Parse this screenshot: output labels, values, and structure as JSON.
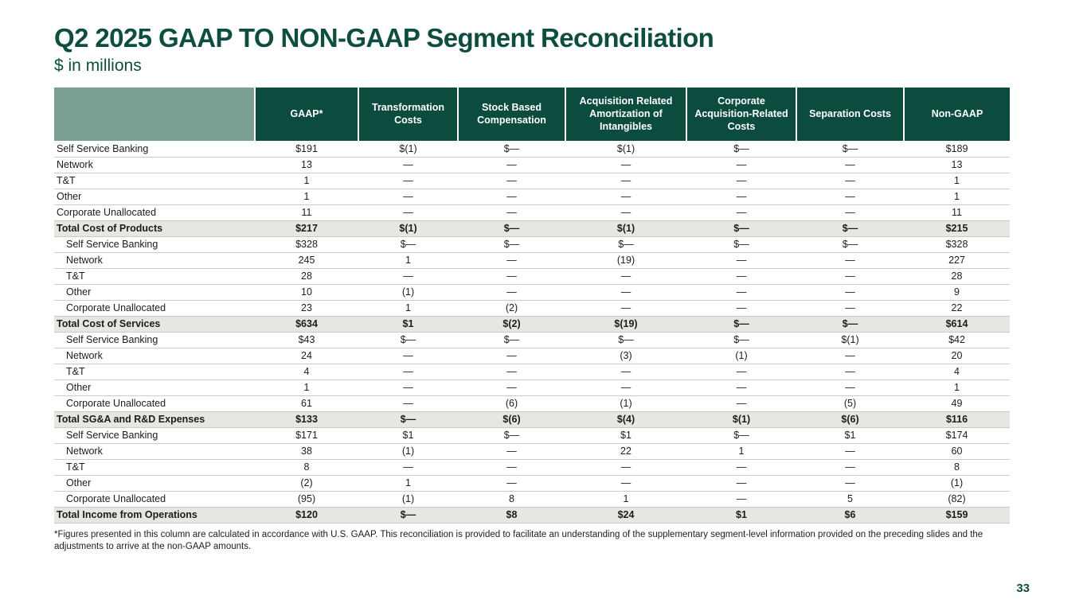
{
  "header": {
    "title": "Q2 2025 GAAP TO NON-GAAP Segment Reconciliation",
    "subtitle": "$ in millions"
  },
  "colors": {
    "header_green": "#0b4c3f",
    "header_sage": "#7aa092",
    "total_row_bg": "#e4e8e0",
    "title_green": "#0d4e40"
  },
  "table": {
    "columns": [
      "",
      "GAAP*",
      "Transformation Costs",
      "Stock Based Compensation",
      "Acquisition Related Amortization of Intangibles",
      "Corporate Acquisition-Related Costs",
      "Separation Costs",
      "Non-GAAP"
    ],
    "rows": [
      {
        "label": "Self Service Banking",
        "type": "data",
        "indent": false,
        "values": [
          "$191",
          "$(1)",
          "$—",
          "$(1)",
          "$—",
          "$—",
          "$189"
        ]
      },
      {
        "label": "Network",
        "type": "data",
        "indent": false,
        "values": [
          "13",
          "—",
          "—",
          "—",
          "—",
          "—",
          "13"
        ]
      },
      {
        "label": "T&T",
        "type": "data",
        "indent": false,
        "values": [
          "1",
          "—",
          "—",
          "—",
          "—",
          "—",
          "1"
        ]
      },
      {
        "label": "Other",
        "type": "data",
        "indent": false,
        "values": [
          "1",
          "—",
          "—",
          "—",
          "—",
          "—",
          "1"
        ]
      },
      {
        "label": "Corporate Unallocated",
        "type": "data",
        "indent": false,
        "values": [
          "11",
          "—",
          "—",
          "—",
          "—",
          "—",
          "11"
        ]
      },
      {
        "label": "Total Cost of Products",
        "type": "total",
        "indent": false,
        "values": [
          "$217",
          "$(1)",
          "$—",
          "$(1)",
          "$—",
          "$—",
          "$215"
        ]
      },
      {
        "label": "Self Service Banking",
        "type": "data",
        "indent": true,
        "values": [
          "$328",
          "$—",
          "$—",
          "$—",
          "$—",
          "$—",
          "$328"
        ]
      },
      {
        "label": "Network",
        "type": "data",
        "indent": true,
        "values": [
          "245",
          "1",
          "—",
          "(19)",
          "—",
          "—",
          "227"
        ]
      },
      {
        "label": "T&T",
        "type": "data",
        "indent": true,
        "values": [
          "28",
          "—",
          "—",
          "—",
          "—",
          "—",
          "28"
        ]
      },
      {
        "label": "Other",
        "type": "data",
        "indent": true,
        "values": [
          "10",
          "(1)",
          "—",
          "—",
          "—",
          "—",
          "9"
        ]
      },
      {
        "label": "Corporate Unallocated",
        "type": "data",
        "indent": true,
        "values": [
          "23",
          "1",
          "(2)",
          "—",
          "—",
          "—",
          "22"
        ]
      },
      {
        "label": "Total Cost of Services",
        "type": "total",
        "indent": false,
        "values": [
          "$634",
          "$1",
          "$(2)",
          "$(19)",
          "$—",
          "$—",
          "$614"
        ]
      },
      {
        "label": "Self Service Banking",
        "type": "data",
        "indent": true,
        "values": [
          "$43",
          "$—",
          "$—",
          "$—",
          "$—",
          "$(1)",
          "$42"
        ]
      },
      {
        "label": "Network",
        "type": "data",
        "indent": true,
        "values": [
          "24",
          "—",
          "—",
          "(3)",
          "(1)",
          "—",
          "20"
        ]
      },
      {
        "label": "T&T",
        "type": "data",
        "indent": true,
        "values": [
          "4",
          "—",
          "—",
          "—",
          "—",
          "—",
          "4"
        ]
      },
      {
        "label": "Other",
        "type": "data",
        "indent": true,
        "values": [
          "1",
          "—",
          "—",
          "—",
          "—",
          "—",
          "1"
        ]
      },
      {
        "label": "Corporate Unallocated",
        "type": "data",
        "indent": true,
        "values": [
          "61",
          "—",
          "(6)",
          "(1)",
          "—",
          "(5)",
          "49"
        ]
      },
      {
        "label": "Total SG&A and R&D Expenses",
        "type": "total",
        "indent": false,
        "values": [
          "$133",
          "$—",
          "$(6)",
          "$(4)",
          "$(1)",
          "$(6)",
          "$116"
        ]
      },
      {
        "label": "Self Service Banking",
        "type": "data",
        "indent": true,
        "values": [
          "$171",
          "$1",
          "$—",
          "$1",
          "$—",
          "$1",
          "$174"
        ]
      },
      {
        "label": "Network",
        "type": "data",
        "indent": true,
        "values": [
          "38",
          "(1)",
          "—",
          "22",
          "1",
          "—",
          "60"
        ]
      },
      {
        "label": "T&T",
        "type": "data",
        "indent": true,
        "values": [
          "8",
          "—",
          "—",
          "—",
          "—",
          "—",
          "8"
        ]
      },
      {
        "label": "Other",
        "type": "data",
        "indent": true,
        "values": [
          "(2)",
          "1",
          "—",
          "—",
          "—",
          "—",
          "(1)"
        ]
      },
      {
        "label": "Corporate Unallocated",
        "type": "data",
        "indent": true,
        "values": [
          "(95)",
          "(1)",
          "8",
          "1",
          "—",
          "5",
          "(82)"
        ]
      },
      {
        "label": "Total Income from Operations",
        "type": "total",
        "indent": false,
        "values": [
          "$120",
          "$—",
          "$8",
          "$24",
          "$1",
          "$6",
          "$159"
        ]
      }
    ]
  },
  "footer": {
    "footnote": "*Figures presented in this column are calculated in accordance with U.S. GAAP. This reconciliation is provided to facilitate an understanding of the supplementary segment-level information provided on the preceding slides and the adjustments to arrive at the non-GAAP amounts.",
    "page_number": "33"
  }
}
